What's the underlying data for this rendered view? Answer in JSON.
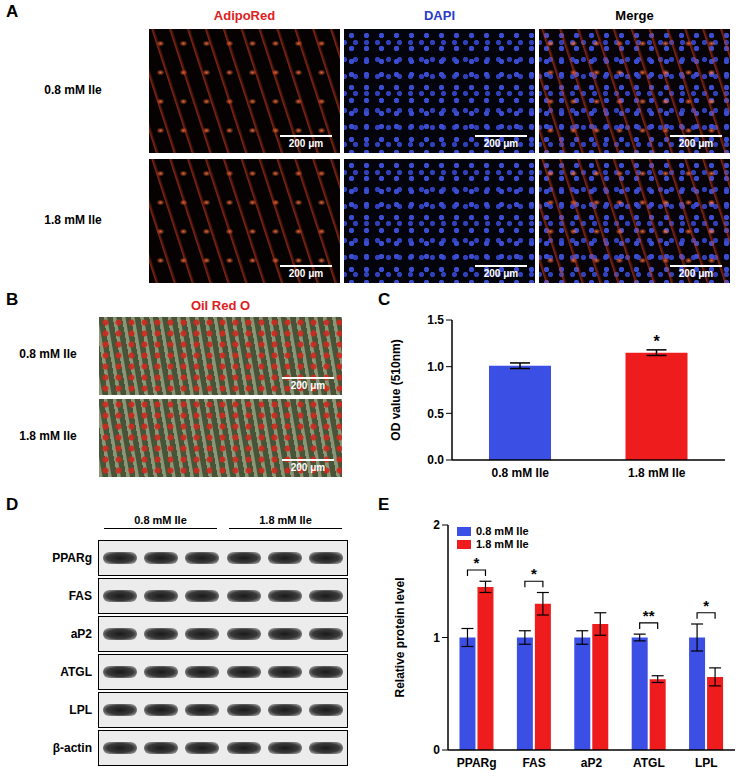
{
  "panels": {
    "A": {
      "label": "A",
      "columns": [
        {
          "label": "AdipoRed",
          "color": "#e02020"
        },
        {
          "label": "DAPI",
          "color": "#2a3cc8"
        },
        {
          "label": "Merge",
          "color": "#000000"
        }
      ],
      "rows": [
        "0.8 mM Ile",
        "1.8 mM Ile"
      ],
      "scale_bar": "200 μm"
    },
    "B": {
      "label": "B",
      "title": "Oil Red O",
      "color": "#e02020",
      "rows": [
        "0.8 mM Ile",
        "1.8 mM Ile"
      ],
      "scale_bar": "200 μm"
    },
    "C": {
      "label": "C"
    },
    "D": {
      "label": "D",
      "groups": [
        "0.8 mM Ile",
        "1.8 mM Ile"
      ],
      "proteins": [
        "PPARg",
        "FAS",
        "aP2",
        "ATGL",
        "LPL",
        "β-actin"
      ]
    },
    "E": {
      "label": "E"
    }
  },
  "chart_data": [
    {
      "type": "bar",
      "categories": [
        "0.8 mM Ile",
        "1.8 mM Ile"
      ],
      "values": [
        1.01,
        1.15
      ],
      "errors": [
        0.03,
        0.03
      ],
      "colors": [
        "#3b4fe4",
        "#ee1c1c"
      ],
      "y_label": "OD value (510nm)",
      "ylim": [
        0,
        1.5
      ],
      "yticks": [
        {
          "value": 0,
          "label": "0.0"
        },
        0.5,
        {
          "value": 1,
          "label": "1.0"
        },
        1.5
      ],
      "grid": false,
      "significance": [
        {
          "category": "1.8 mM Ile",
          "label": "*"
        }
      ]
    },
    {
      "type": "bar",
      "categories": [
        "PPARg",
        "FAS",
        "aP2",
        "ATGL",
        "LPL"
      ],
      "series": [
        {
          "name": "0.8 mM Ile",
          "color": "#3b4fe4",
          "values": [
            1.0,
            1.0,
            1.0,
            1.0,
            1.0
          ],
          "errors": [
            0.08,
            0.06,
            0.06,
            0.03,
            0.12
          ]
        },
        {
          "name": "1.8 mM Ile",
          "color": "#ee1c1c",
          "values": [
            1.45,
            1.3,
            1.12,
            0.63,
            0.65
          ],
          "errors": [
            0.05,
            0.1,
            0.1,
            0.03,
            0.08
          ]
        }
      ],
      "y_label": "Relative protein level",
      "ylim": [
        0,
        2
      ],
      "yticks": [
        0,
        1,
        2
      ],
      "grid": false,
      "legend": "upper left",
      "significance": [
        {
          "category": "PPARg",
          "label": "*"
        },
        {
          "category": "FAS",
          "label": "*"
        },
        {
          "category": "ATGL",
          "label": "**"
        },
        {
          "category": "LPL",
          "label": "*"
        }
      ]
    }
  ]
}
